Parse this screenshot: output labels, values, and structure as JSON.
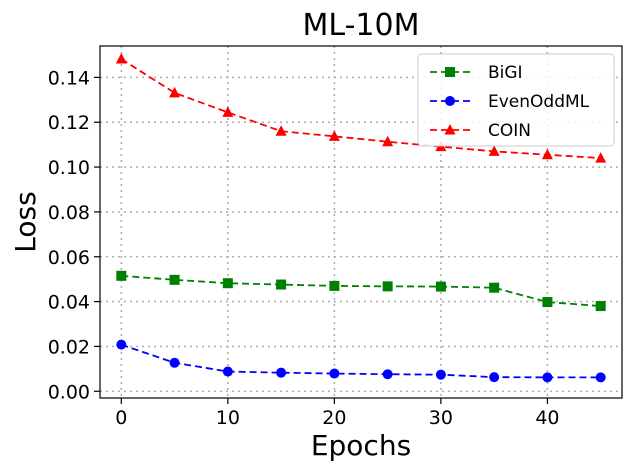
{
  "chart_data": {
    "type": "line",
    "title": "ML-10M",
    "xlabel": "Epochs",
    "ylabel": "Loss",
    "xlim": [
      -2,
      47
    ],
    "ylim": [
      -0.003,
      0.154
    ],
    "xticks": [
      0,
      10,
      20,
      30,
      40
    ],
    "yticks": [
      0.0,
      0.02,
      0.04,
      0.06,
      0.08,
      0.1,
      0.12,
      0.14
    ],
    "grid": true,
    "legend_position": "top-right",
    "x": [
      0,
      5,
      10,
      15,
      20,
      25,
      30,
      35,
      40,
      45
    ],
    "series": [
      {
        "name": "BiGI",
        "color": "#008000",
        "marker": "square",
        "values": [
          0.0515,
          0.0497,
          0.0482,
          0.0476,
          0.047,
          0.0468,
          0.0467,
          0.0462,
          0.0398,
          0.038
        ]
      },
      {
        "name": "EvenOddML",
        "color": "#0000ff",
        "marker": "circle",
        "values": [
          0.0208,
          0.0127,
          0.0088,
          0.0083,
          0.0079,
          0.0076,
          0.0074,
          0.0063,
          0.0062,
          0.0062
        ]
      },
      {
        "name": "COIN",
        "color": "#ff0000",
        "marker": "triangle",
        "values": [
          0.1482,
          0.1331,
          0.1244,
          0.116,
          0.1137,
          0.1113,
          0.1091,
          0.107,
          0.1055,
          0.104
        ]
      }
    ]
  }
}
